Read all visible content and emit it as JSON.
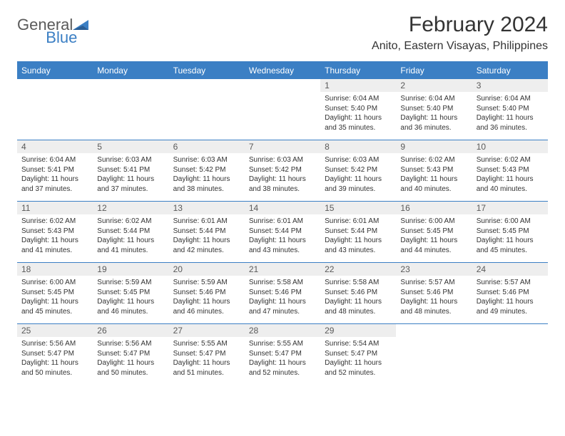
{
  "logo": {
    "general": "General",
    "blue": "Blue"
  },
  "title": "February 2024",
  "location": "Anito, Eastern Visayas, Philippines",
  "colors": {
    "accent": "#3b7fc4",
    "header_text": "#ffffff",
    "daynum_bg": "#eeeeee",
    "daynum_text": "#5a5a5a",
    "body_text": "#333333",
    "logo_gray": "#5a5a5a"
  },
  "day_headers": [
    "Sunday",
    "Monday",
    "Tuesday",
    "Wednesday",
    "Thursday",
    "Friday",
    "Saturday"
  ],
  "weeks": [
    [
      {
        "num": "",
        "lines": []
      },
      {
        "num": "",
        "lines": []
      },
      {
        "num": "",
        "lines": []
      },
      {
        "num": "",
        "lines": []
      },
      {
        "num": "1",
        "lines": [
          "Sunrise: 6:04 AM",
          "Sunset: 5:40 PM",
          "Daylight: 11 hours",
          "and 35 minutes."
        ]
      },
      {
        "num": "2",
        "lines": [
          "Sunrise: 6:04 AM",
          "Sunset: 5:40 PM",
          "Daylight: 11 hours",
          "and 36 minutes."
        ]
      },
      {
        "num": "3",
        "lines": [
          "Sunrise: 6:04 AM",
          "Sunset: 5:40 PM",
          "Daylight: 11 hours",
          "and 36 minutes."
        ]
      }
    ],
    [
      {
        "num": "4",
        "lines": [
          "Sunrise: 6:04 AM",
          "Sunset: 5:41 PM",
          "Daylight: 11 hours",
          "and 37 minutes."
        ]
      },
      {
        "num": "5",
        "lines": [
          "Sunrise: 6:03 AM",
          "Sunset: 5:41 PM",
          "Daylight: 11 hours",
          "and 37 minutes."
        ]
      },
      {
        "num": "6",
        "lines": [
          "Sunrise: 6:03 AM",
          "Sunset: 5:42 PM",
          "Daylight: 11 hours",
          "and 38 minutes."
        ]
      },
      {
        "num": "7",
        "lines": [
          "Sunrise: 6:03 AM",
          "Sunset: 5:42 PM",
          "Daylight: 11 hours",
          "and 38 minutes."
        ]
      },
      {
        "num": "8",
        "lines": [
          "Sunrise: 6:03 AM",
          "Sunset: 5:42 PM",
          "Daylight: 11 hours",
          "and 39 minutes."
        ]
      },
      {
        "num": "9",
        "lines": [
          "Sunrise: 6:02 AM",
          "Sunset: 5:43 PM",
          "Daylight: 11 hours",
          "and 40 minutes."
        ]
      },
      {
        "num": "10",
        "lines": [
          "Sunrise: 6:02 AM",
          "Sunset: 5:43 PM",
          "Daylight: 11 hours",
          "and 40 minutes."
        ]
      }
    ],
    [
      {
        "num": "11",
        "lines": [
          "Sunrise: 6:02 AM",
          "Sunset: 5:43 PM",
          "Daylight: 11 hours",
          "and 41 minutes."
        ]
      },
      {
        "num": "12",
        "lines": [
          "Sunrise: 6:02 AM",
          "Sunset: 5:44 PM",
          "Daylight: 11 hours",
          "and 41 minutes."
        ]
      },
      {
        "num": "13",
        "lines": [
          "Sunrise: 6:01 AM",
          "Sunset: 5:44 PM",
          "Daylight: 11 hours",
          "and 42 minutes."
        ]
      },
      {
        "num": "14",
        "lines": [
          "Sunrise: 6:01 AM",
          "Sunset: 5:44 PM",
          "Daylight: 11 hours",
          "and 43 minutes."
        ]
      },
      {
        "num": "15",
        "lines": [
          "Sunrise: 6:01 AM",
          "Sunset: 5:44 PM",
          "Daylight: 11 hours",
          "and 43 minutes."
        ]
      },
      {
        "num": "16",
        "lines": [
          "Sunrise: 6:00 AM",
          "Sunset: 5:45 PM",
          "Daylight: 11 hours",
          "and 44 minutes."
        ]
      },
      {
        "num": "17",
        "lines": [
          "Sunrise: 6:00 AM",
          "Sunset: 5:45 PM",
          "Daylight: 11 hours",
          "and 45 minutes."
        ]
      }
    ],
    [
      {
        "num": "18",
        "lines": [
          "Sunrise: 6:00 AM",
          "Sunset: 5:45 PM",
          "Daylight: 11 hours",
          "and 45 minutes."
        ]
      },
      {
        "num": "19",
        "lines": [
          "Sunrise: 5:59 AM",
          "Sunset: 5:45 PM",
          "Daylight: 11 hours",
          "and 46 minutes."
        ]
      },
      {
        "num": "20",
        "lines": [
          "Sunrise: 5:59 AM",
          "Sunset: 5:46 PM",
          "Daylight: 11 hours",
          "and 46 minutes."
        ]
      },
      {
        "num": "21",
        "lines": [
          "Sunrise: 5:58 AM",
          "Sunset: 5:46 PM",
          "Daylight: 11 hours",
          "and 47 minutes."
        ]
      },
      {
        "num": "22",
        "lines": [
          "Sunrise: 5:58 AM",
          "Sunset: 5:46 PM",
          "Daylight: 11 hours",
          "and 48 minutes."
        ]
      },
      {
        "num": "23",
        "lines": [
          "Sunrise: 5:57 AM",
          "Sunset: 5:46 PM",
          "Daylight: 11 hours",
          "and 48 minutes."
        ]
      },
      {
        "num": "24",
        "lines": [
          "Sunrise: 5:57 AM",
          "Sunset: 5:46 PM",
          "Daylight: 11 hours",
          "and 49 minutes."
        ]
      }
    ],
    [
      {
        "num": "25",
        "lines": [
          "Sunrise: 5:56 AM",
          "Sunset: 5:47 PM",
          "Daylight: 11 hours",
          "and 50 minutes."
        ]
      },
      {
        "num": "26",
        "lines": [
          "Sunrise: 5:56 AM",
          "Sunset: 5:47 PM",
          "Daylight: 11 hours",
          "and 50 minutes."
        ]
      },
      {
        "num": "27",
        "lines": [
          "Sunrise: 5:55 AM",
          "Sunset: 5:47 PM",
          "Daylight: 11 hours",
          "and 51 minutes."
        ]
      },
      {
        "num": "28",
        "lines": [
          "Sunrise: 5:55 AM",
          "Sunset: 5:47 PM",
          "Daylight: 11 hours",
          "and 52 minutes."
        ]
      },
      {
        "num": "29",
        "lines": [
          "Sunrise: 5:54 AM",
          "Sunset: 5:47 PM",
          "Daylight: 11 hours",
          "and 52 minutes."
        ]
      },
      {
        "num": "",
        "lines": []
      },
      {
        "num": "",
        "lines": []
      }
    ]
  ]
}
